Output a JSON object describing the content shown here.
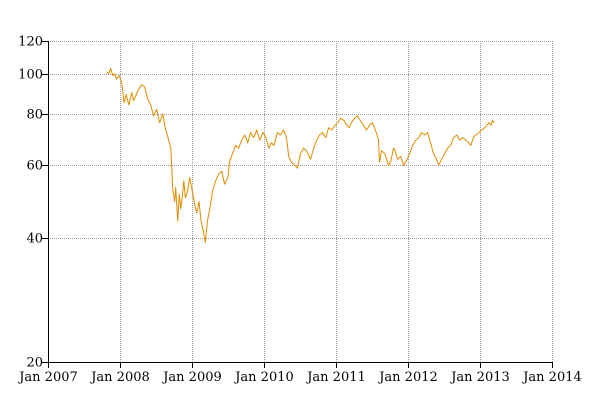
{
  "chart_data": {
    "type": "line",
    "title": "",
    "xlabel": "",
    "ylabel": "",
    "y_scale": "log",
    "ylim": [
      20,
      120
    ],
    "xlim": [
      "2007-01-01",
      "2014-01-01"
    ],
    "grid": true,
    "legend": "none",
    "y_ticks": [
      20,
      40,
      60,
      80,
      100,
      120
    ],
    "x_ticks": [
      {
        "date": "2007-01-01",
        "label": "Jan 2007"
      },
      {
        "date": "2008-01-01",
        "label": "Jan 2008"
      },
      {
        "date": "2009-01-01",
        "label": "Jan 2009"
      },
      {
        "date": "2010-01-01",
        "label": "Jan 2010"
      },
      {
        "date": "2011-01-01",
        "label": "Jan 2011"
      },
      {
        "date": "2012-01-01",
        "label": "Jan 2012"
      },
      {
        "date": "2013-01-01",
        "label": "Jan 2013"
      },
      {
        "date": "2014-01-01",
        "label": "Jan 2014"
      }
    ],
    "series": [
      {
        "color": "#e08c00",
        "x": [
          "2007-10-25",
          "2007-11-05",
          "2007-11-15",
          "2007-11-25",
          "2007-12-05",
          "2007-12-15",
          "2007-12-28",
          "2008-01-10",
          "2008-01-22",
          "2008-02-01",
          "2008-02-15",
          "2008-03-01",
          "2008-03-10",
          "2008-03-20",
          "2008-04-01",
          "2008-04-20",
          "2008-05-05",
          "2008-05-20",
          "2008-06-05",
          "2008-06-20",
          "2008-07-05",
          "2008-07-20",
          "2008-08-05",
          "2008-08-20",
          "2008-09-01",
          "2008-09-15",
          "2008-09-25",
          "2008-10-05",
          "2008-10-10",
          "2008-10-20",
          "2008-10-28",
          "2008-11-05",
          "2008-11-12",
          "2008-11-20",
          "2008-11-28",
          "2008-12-10",
          "2008-12-20",
          "2009-01-05",
          "2009-01-15",
          "2009-01-25",
          "2009-02-05",
          "2009-02-15",
          "2009-02-25",
          "2009-03-05",
          "2009-03-09",
          "2009-03-20",
          "2009-04-01",
          "2009-04-15",
          "2009-05-01",
          "2009-05-15",
          "2009-06-01",
          "2009-06-15",
          "2009-07-01",
          "2009-07-10",
          "2009-07-25",
          "2009-08-10",
          "2009-08-25",
          "2009-09-10",
          "2009-09-25",
          "2009-10-10",
          "2009-10-25",
          "2009-11-10",
          "2009-11-25",
          "2009-12-10",
          "2009-12-28",
          "2010-01-10",
          "2010-01-25",
          "2010-02-08",
          "2010-02-20",
          "2010-03-10",
          "2010-03-25",
          "2010-04-10",
          "2010-04-25",
          "2010-05-06",
          "2010-05-20",
          "2010-06-05",
          "2010-06-20",
          "2010-07-05",
          "2010-07-20",
          "2010-08-05",
          "2010-08-25",
          "2010-09-10",
          "2010-09-25",
          "2010-10-10",
          "2010-10-25",
          "2010-11-10",
          "2010-11-25",
          "2010-12-10",
          "2010-12-28",
          "2011-01-10",
          "2011-01-25",
          "2011-02-10",
          "2011-02-25",
          "2011-03-10",
          "2011-03-20",
          "2011-04-05",
          "2011-04-20",
          "2011-05-05",
          "2011-05-20",
          "2011-06-05",
          "2011-06-20",
          "2011-07-05",
          "2011-07-20",
          "2011-08-05",
          "2011-08-10",
          "2011-08-20",
          "2011-09-05",
          "2011-09-15",
          "2011-09-25",
          "2011-10-05",
          "2011-10-20",
          "2011-10-28",
          "2011-11-10",
          "2011-11-25",
          "2011-12-10",
          "2011-12-28",
          "2012-01-10",
          "2012-01-25",
          "2012-02-10",
          "2012-02-25",
          "2012-03-10",
          "2012-03-25",
          "2012-04-10",
          "2012-04-25",
          "2012-05-10",
          "2012-05-25",
          "2012-06-05",
          "2012-06-20",
          "2012-07-05",
          "2012-07-20",
          "2012-08-05",
          "2012-08-20",
          "2012-09-05",
          "2012-09-20",
          "2012-10-05",
          "2012-10-20",
          "2012-11-05",
          "2012-11-15",
          "2012-11-28",
          "2012-12-10",
          "2012-12-28",
          "2013-01-10",
          "2013-01-25",
          "2013-02-05",
          "2013-02-15",
          "2013-02-25",
          "2013-03-05",
          "2013-03-15"
        ],
        "y": [
          101,
          100,
          103,
          99,
          100,
          97,
          99,
          95,
          85,
          89,
          84,
          90,
          86,
          88,
          91,
          94,
          93,
          87,
          84,
          79,
          82,
          76,
          80,
          73,
          70,
          66,
          52,
          49,
          53,
          44,
          51,
          47,
          50,
          55,
          50,
          52,
          56,
          51,
          48,
          46,
          49,
          44,
          42,
          40,
          39,
          44,
          47,
          52,
          55,
          57,
          58,
          54,
          56,
          61,
          64,
          67,
          66,
          69,
          71,
          68,
          72,
          70,
          73,
          69,
          72,
          70,
          66,
          68,
          67,
          72,
          71,
          73,
          70,
          63,
          61,
          60,
          59,
          64,
          66,
          65,
          62,
          66,
          69,
          71,
          72,
          70,
          74,
          73,
          75,
          76,
          78,
          77,
          75,
          74,
          76,
          78,
          79,
          77,
          75,
          73,
          75,
          76,
          73,
          69,
          61,
          65,
          64,
          62,
          60,
          61,
          66,
          65,
          62,
          63,
          60,
          62,
          64,
          67,
          69,
          70,
          72,
          71,
          72,
          68,
          64,
          62,
          60,
          62,
          64,
          66,
          67,
          70,
          71,
          69,
          70,
          69,
          68,
          67,
          70,
          71,
          72,
          73,
          74,
          75,
          76,
          75,
          77,
          76
        ]
      }
    ]
  }
}
